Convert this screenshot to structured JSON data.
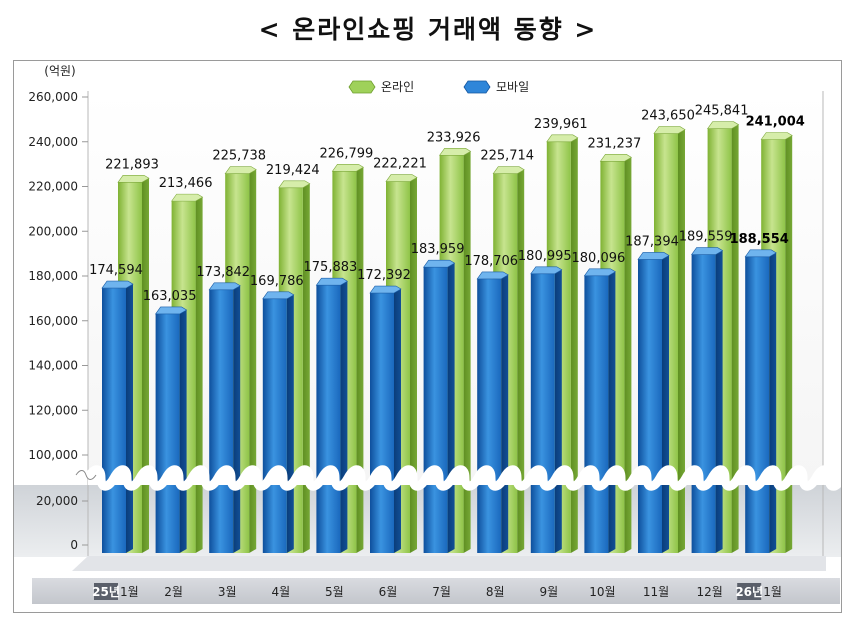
{
  "title": "< 온라인쇼핑 거래액 동향 >",
  "chart_data": {
    "type": "bar",
    "unit": "(억원)",
    "categories": [
      {
        "year": "25년",
        "month": "1월"
      },
      {
        "year": "",
        "month": "2월"
      },
      {
        "year": "",
        "month": "3월"
      },
      {
        "year": "",
        "month": "4월"
      },
      {
        "year": "",
        "month": "5월"
      },
      {
        "year": "",
        "month": "6월"
      },
      {
        "year": "",
        "month": "7월"
      },
      {
        "year": "",
        "month": "8월"
      },
      {
        "year": "",
        "month": "9월"
      },
      {
        "year": "",
        "month": "10월"
      },
      {
        "year": "",
        "month": "11월"
      },
      {
        "year": "",
        "month": "12월"
      },
      {
        "year": "26년",
        "month": "1월"
      }
    ],
    "series": [
      {
        "name": "온라인",
        "color": "#8dc63f",
        "values": [
          221893,
          213466,
          225738,
          219424,
          226799,
          222221,
          233926,
          225714,
          239961,
          231237,
          243650,
          245841,
          241004
        ],
        "labels": [
          "221,893",
          "213,466",
          "225,738",
          "219,424",
          "226,799",
          "222,221",
          "233,926",
          "225,714",
          "239,961",
          "231,237",
          "243,650",
          "245,841",
          "241,004"
        ]
      },
      {
        "name": "모바일",
        "color": "#1f6fc4",
        "values": [
          174594,
          163035,
          173842,
          169786,
          175883,
          172392,
          183959,
          178706,
          180995,
          180096,
          187394,
          189559,
          188554
        ],
        "labels": [
          "174,594",
          "163,035",
          "173,842",
          "169,786",
          "175,883",
          "172,392",
          "183,959",
          "178,706",
          "180,995",
          "180,096",
          "187,394",
          "189,559",
          "188,554"
        ]
      }
    ],
    "y_ticks_upper": [
      "260,000",
      "240,000",
      "220,000",
      "200,000",
      "180,000",
      "160,000",
      "140,000",
      "120,000",
      "100,000"
    ],
    "y_ticks_lower": [
      "20,000",
      "0"
    ],
    "y_upper_range": [
      100000,
      260000
    ],
    "y_lower_range": [
      0,
      20000
    ],
    "axis_break": true,
    "legend_position": "top"
  }
}
